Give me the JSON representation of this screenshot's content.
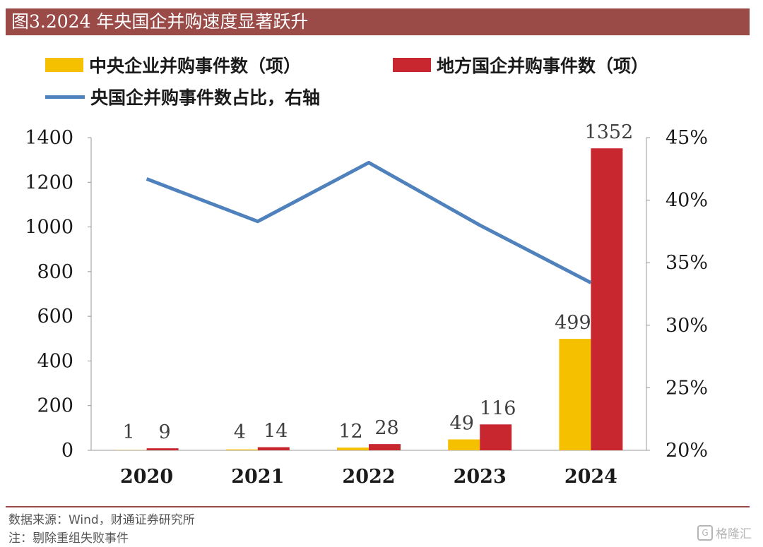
{
  "title": "图3.2024 年央国企并购速度显著跃升",
  "colors": {
    "central": "#f5c000",
    "local": "#c8272f",
    "ratio": "#4f81bd",
    "title_bg": "#9a4a47"
  },
  "chart_data": {
    "type": "bar",
    "categories": [
      "2020",
      "2021",
      "2022",
      "2023",
      "2024"
    ],
    "series": [
      {
        "name": "中央企业并购事件数（项）",
        "type": "bar",
        "axis": "left",
        "values": [
          1,
          4,
          12,
          49,
          499
        ]
      },
      {
        "name": "地方国企并购事件数（项）",
        "type": "bar",
        "axis": "left",
        "values": [
          9,
          14,
          28,
          116,
          1352
        ]
      },
      {
        "name": "央国企并购事件数占比，右轴",
        "type": "line",
        "axis": "right",
        "values": [
          41.7,
          38.3,
          43.0,
          38.0,
          33.4
        ]
      }
    ],
    "y_left": {
      "min": 0,
      "max": 1400,
      "ticks": [
        "0",
        "200",
        "400",
        "600",
        "800",
        "1000",
        "1200",
        "1400"
      ]
    },
    "y_right": {
      "min": 20,
      "max": 45,
      "ticks": [
        "20%",
        "25%",
        "30%",
        "35%",
        "40%",
        "45%"
      ]
    },
    "data_labels": {
      "central": [
        "1",
        "4",
        "12",
        "49",
        "499"
      ],
      "local": [
        "9",
        "14",
        "28",
        "116",
        "1352"
      ]
    },
    "legend_position": "top",
    "grid": false
  },
  "footer": {
    "source": "数据来源：Wind，财通证券研究所",
    "note": "注：剔除重组失败事件",
    "watermark": "格隆汇"
  }
}
